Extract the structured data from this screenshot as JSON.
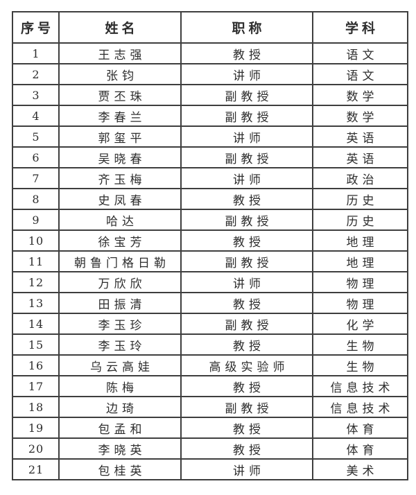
{
  "table": {
    "columns": [
      "序号",
      "姓名",
      "职称",
      "学科"
    ],
    "column_keys": [
      "no",
      "name",
      "title",
      "subject"
    ],
    "rows": [
      [
        "1",
        "王志强",
        "教授",
        "语文"
      ],
      [
        "2",
        "张钧",
        "讲师",
        "语文"
      ],
      [
        "3",
        "贾丕珠",
        "副教授",
        "数学"
      ],
      [
        "4",
        "李春兰",
        "副教授",
        "数学"
      ],
      [
        "5",
        "郭玺平",
        "讲师",
        "英语"
      ],
      [
        "6",
        "吴晓春",
        "副教授",
        "英语"
      ],
      [
        "7",
        "齐玉梅",
        "讲师",
        "政治"
      ],
      [
        "8",
        "史凤春",
        "教授",
        "历史"
      ],
      [
        "9",
        "哈达",
        "副教授",
        "历史"
      ],
      [
        "10",
        "徐宝芳",
        "教授",
        "地理"
      ],
      [
        "11",
        "朝鲁门格日勒",
        "副教授",
        "地理"
      ],
      [
        "12",
        "万欣欣",
        "讲师",
        "物理"
      ],
      [
        "13",
        "田振清",
        "教授",
        "物理"
      ],
      [
        "14",
        "李玉珍",
        "副教授",
        "化学"
      ],
      [
        "15",
        "李玉玲",
        "教授",
        "生物"
      ],
      [
        "16",
        "乌云高娃",
        "高级实验师",
        "生物"
      ],
      [
        "17",
        "陈梅",
        "教授",
        "信息技术"
      ],
      [
        "18",
        "边琦",
        "副教授",
        "信息技术"
      ],
      [
        "19",
        "包孟和",
        "教授",
        "体育"
      ],
      [
        "20",
        "李晓英",
        "教授",
        "体育"
      ],
      [
        "21",
        "包桂英",
        "讲师",
        "美术"
      ]
    ]
  },
  "colors": {
    "border": "#3e3e3e",
    "text": "#2d2d2d",
    "background": "#ffffff"
  }
}
